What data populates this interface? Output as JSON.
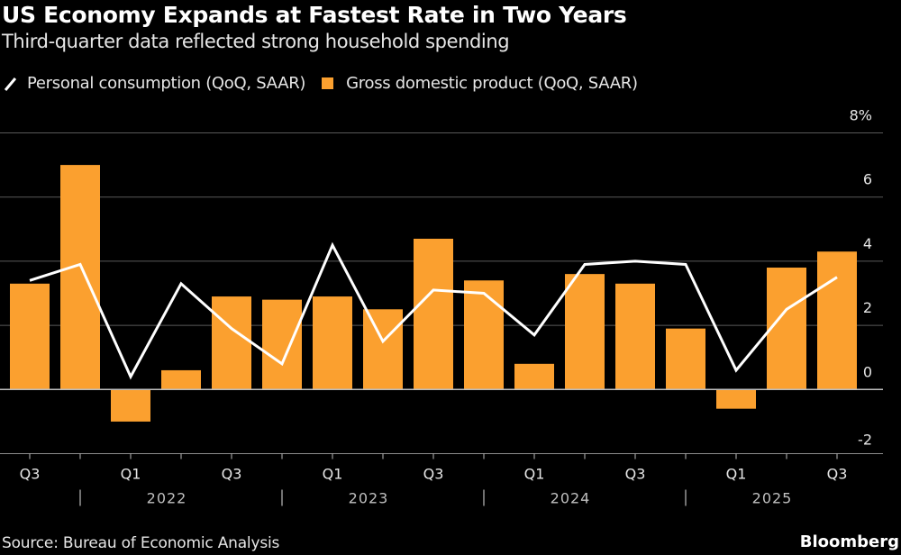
{
  "header": {
    "title": "US Economy Expands at Fastest Rate in Two Years",
    "subtitle": "Third-quarter data reflected strong household spending"
  },
  "footer": {
    "source": "Source: Bureau of Economic Analysis",
    "brand": "Bloomberg"
  },
  "colors": {
    "background": "#000000",
    "bar": "#FBA02F",
    "line": "#FFFFFF",
    "grid": "#595959"
  },
  "chart_data": {
    "type": "bar",
    "title": "US Economy Expands at Fastest Rate in Two Years",
    "subtitle": "Third-quarter data reflected strong household spending",
    "xlabel": "",
    "ylabel": "",
    "ylim": [
      -2,
      8
    ],
    "yticks": [
      8,
      6,
      4,
      2,
      0,
      -2
    ],
    "ytick_labels": [
      "8%",
      "6",
      "4",
      "2",
      "0",
      "-2"
    ],
    "y_axis_side": "right",
    "grid": true,
    "legend_position": "top-left",
    "categories": [
      "Q3 2021",
      "Q4 2021",
      "Q1 2022",
      "Q2 2022",
      "Q3 2022",
      "Q4 2022",
      "Q1 2023",
      "Q2 2023",
      "Q3 2023",
      "Q4 2023",
      "Q1 2024",
      "Q2 2024",
      "Q3 2024",
      "Q4 2024",
      "Q1 2025",
      "Q2 2025",
      "Q3 2025"
    ],
    "x_tick_labels": [
      "Q3",
      "",
      "Q1",
      "",
      "Q3",
      "",
      "Q1",
      "",
      "Q3",
      "",
      "Q1",
      "",
      "Q3",
      "",
      "Q1",
      "",
      "Q3"
    ],
    "year_labels": [
      {
        "label": "2022",
        "start_index": 2
      },
      {
        "label": "2023",
        "start_index": 6
      },
      {
        "label": "2024",
        "start_index": 10
      },
      {
        "label": "2025",
        "start_index": 14
      }
    ],
    "series": [
      {
        "name": "Gross domestic product (QoQ, SAAR)",
        "type": "bar",
        "values": [
          3.3,
          7.0,
          -1.0,
          0.6,
          2.9,
          2.8,
          2.9,
          2.5,
          4.7,
          3.4,
          0.8,
          3.6,
          3.3,
          1.9,
          -0.6,
          3.8,
          4.3
        ]
      },
      {
        "name": "Personal consumption (QoQ, SAAR)",
        "type": "line",
        "values": [
          3.4,
          3.9,
          0.4,
          3.3,
          1.9,
          0.8,
          4.5,
          1.5,
          3.1,
          3.0,
          1.7,
          3.9,
          4.0,
          3.9,
          0.6,
          2.5,
          3.5
        ]
      }
    ]
  }
}
